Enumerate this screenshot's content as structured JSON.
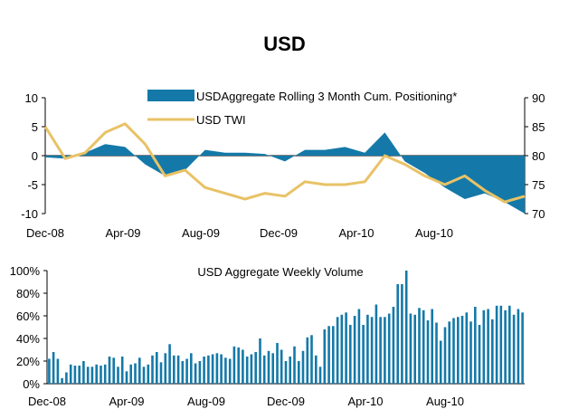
{
  "title": "USD",
  "chart_data": [
    {
      "type": "area",
      "title": "",
      "x": [
        "Dec-08",
        "Jan-09",
        "Feb-09",
        "Mar-09",
        "Apr-09",
        "May-09",
        "Jun-09",
        "Jul-09",
        "Aug-09",
        "Sep-09",
        "Oct-09",
        "Nov-09",
        "Dec-09",
        "Jan-10",
        "Feb-10",
        "Mar-10",
        "Apr-10",
        "May-10",
        "Jun-10",
        "Jul-10",
        "Aug-10",
        "Sep-10",
        "Oct-10",
        "Nov-10",
        "Dec-10"
      ],
      "x_tick_labels": [
        "Dec-08",
        "Apr-09",
        "Aug-09",
        "Dec-09",
        "Apr-10",
        "Aug-10"
      ],
      "series": [
        {
          "name": "USDAggregate Rolling 3 Month Cum. Positioning*",
          "type": "area",
          "axis": "left",
          "color": "#1479a8",
          "values": [
            -0.3,
            -0.5,
            0.5,
            2.0,
            1.5,
            -1.5,
            -3.5,
            -2.5,
            1.0,
            0.5,
            0.5,
            0.3,
            -1.0,
            1.0,
            1.0,
            1.5,
            0.5,
            4.0,
            -1.0,
            -3.0,
            -5.5,
            -7.5,
            -6.5,
            -8.0,
            -10.0
          ]
        },
        {
          "name": "USD TWI",
          "type": "line",
          "axis": "right",
          "color": "#e8c266",
          "values": [
            85.0,
            79.5,
            80.5,
            84.0,
            85.5,
            82.0,
            76.5,
            77.5,
            74.5,
            73.5,
            72.5,
            73.5,
            73.0,
            75.5,
            75.0,
            75.0,
            75.5,
            80.0,
            78.5,
            76.5,
            75.0,
            76.5,
            74.0,
            72.0,
            73.0
          ]
        }
      ],
      "y_left": {
        "ylim": [
          -10,
          10
        ],
        "ticks": [
          "10",
          "5",
          "0",
          "-5",
          "-10"
        ]
      },
      "y_right": {
        "ylim": [
          70,
          90
        ],
        "ticks": [
          "90",
          "85",
          "80",
          "75",
          "70"
        ]
      },
      "legend": "top-right",
      "grid": false
    },
    {
      "type": "bar",
      "title": "USD Aggregate Weekly Volume",
      "color": "#1479a8",
      "x_tick_labels": [
        "Dec-08",
        "Apr-09",
        "Aug-09",
        "Dec-09",
        "Apr-10",
        "Aug-10"
      ],
      "ylim": [
        0,
        100
      ],
      "y_ticks": [
        "100%",
        "80%",
        "60%",
        "40%",
        "20%",
        "0%"
      ],
      "values": [
        22,
        28,
        22,
        5,
        10,
        17,
        16,
        16,
        20,
        15,
        15,
        17,
        16,
        17,
        24,
        23,
        15,
        24,
        11,
        17,
        18,
        23,
        15,
        17,
        25,
        28,
        19,
        27,
        35,
        25,
        25,
        20,
        22,
        27,
        18,
        20,
        24,
        25,
        26,
        27,
        26,
        23,
        22,
        33,
        32,
        30,
        24,
        26,
        28,
        40,
        25,
        29,
        27,
        36,
        30,
        20,
        24,
        33,
        20,
        29,
        41,
        43,
        25,
        15,
        48,
        51,
        51,
        59,
        61,
        63,
        52,
        60,
        66,
        52,
        61,
        59,
        70,
        59,
        59,
        62,
        68,
        88,
        88,
        100,
        62,
        61,
        67,
        65,
        56,
        66,
        54,
        38,
        50,
        55,
        58,
        59,
        60,
        63,
        55,
        68,
        52,
        65,
        66,
        57,
        69,
        69,
        65,
        69,
        61,
        66,
        63
      ]
    }
  ]
}
